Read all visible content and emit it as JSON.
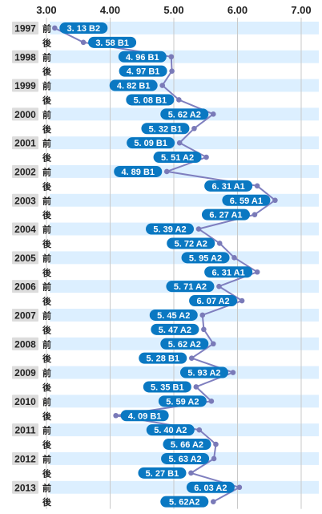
{
  "chart_data": {
    "type": "line",
    "orientation": "horizontal",
    "title": "",
    "xlabel": "",
    "ylabel": "",
    "xlim": [
      3.0,
      7.0
    ],
    "xticks": [
      "3.00",
      "4.00",
      "5.00",
      "6.00",
      "7.00"
    ],
    "grid": true,
    "colors": {
      "line": "#7f7fbf",
      "marker": "#7a7ab8",
      "pill": "#0a78c2",
      "row_band": "#dcefff",
      "year_box": "#dcdcdc",
      "grid": "#c9c9c9"
    },
    "points": [
      {
        "year": "1997",
        "half": "前",
        "value": 3.13,
        "label": "3. 13 B2"
      },
      {
        "year": "",
        "half": "後",
        "value": 3.58,
        "label": "3. 58 B1"
      },
      {
        "year": "1998",
        "half": "前",
        "value": 4.96,
        "label": "4. 96 B1"
      },
      {
        "year": "",
        "half": "後",
        "value": 4.97,
        "label": "4. 97 B1"
      },
      {
        "year": "1999",
        "half": "前",
        "value": 4.82,
        "label": "4. 82 B1"
      },
      {
        "year": "",
        "half": "後",
        "value": 5.08,
        "label": "5. 08 B1"
      },
      {
        "year": "2000",
        "half": "前",
        "value": 5.62,
        "label": "5. 62 A2"
      },
      {
        "year": "",
        "half": "後",
        "value": 5.32,
        "label": "5. 32 B1"
      },
      {
        "year": "2001",
        "half": "前",
        "value": 5.09,
        "label": "5. 09 B1"
      },
      {
        "year": "",
        "half": "後",
        "value": 5.51,
        "label": "5. 51 A2"
      },
      {
        "year": "2002",
        "half": "前",
        "value": 4.89,
        "label": "4. 89 B1"
      },
      {
        "year": "",
        "half": "後",
        "value": 6.31,
        "label": "6. 31 A1"
      },
      {
        "year": "2003",
        "half": "前",
        "value": 6.59,
        "label": "6. 59 A1"
      },
      {
        "year": "",
        "half": "後",
        "value": 6.27,
        "label": "6. 27 A1"
      },
      {
        "year": "2004",
        "half": "前",
        "value": 5.39,
        "label": "5. 39 A2"
      },
      {
        "year": "",
        "half": "後",
        "value": 5.72,
        "label": "5. 72 A2"
      },
      {
        "year": "2005",
        "half": "前",
        "value": 5.95,
        "label": "5. 95 A2"
      },
      {
        "year": "",
        "half": "後",
        "value": 6.31,
        "label": "6. 31 A1"
      },
      {
        "year": "2006",
        "half": "前",
        "value": 5.71,
        "label": "5. 71 A2"
      },
      {
        "year": "",
        "half": "後",
        "value": 6.07,
        "label": "6. 07 A2"
      },
      {
        "year": "2007",
        "half": "前",
        "value": 5.45,
        "label": "5. 45 A2"
      },
      {
        "year": "",
        "half": "後",
        "value": 5.47,
        "label": "5. 47 A2"
      },
      {
        "year": "2008",
        "half": "前",
        "value": 5.62,
        "label": "5. 62 A2"
      },
      {
        "year": "",
        "half": "後",
        "value": 5.28,
        "label": "5. 28 B1"
      },
      {
        "year": "2009",
        "half": "前",
        "value": 5.93,
        "label": "5. 93 A2"
      },
      {
        "year": "",
        "half": "後",
        "value": 5.35,
        "label": "5. 35 B1"
      },
      {
        "year": "2010",
        "half": "前",
        "value": 5.59,
        "label": "5. 59 A2"
      },
      {
        "year": "",
        "half": "後",
        "value": 4.09,
        "label": "4. 09 B1"
      },
      {
        "year": "2011",
        "half": "前",
        "value": 5.4,
        "label": "5. 40 A2"
      },
      {
        "year": "",
        "half": "後",
        "value": 5.66,
        "label": "5. 66 A2"
      },
      {
        "year": "2012",
        "half": "前",
        "value": 5.63,
        "label": "5. 63 A2"
      },
      {
        "year": "",
        "half": "後",
        "value": 5.27,
        "label": "5. 27 B1"
      },
      {
        "year": "2013",
        "half": "前",
        "value": 6.03,
        "label": "6. 03 A2"
      },
      {
        "year": "",
        "half": "後",
        "value": 5.62,
        "label": "5. 62A2"
      }
    ]
  }
}
